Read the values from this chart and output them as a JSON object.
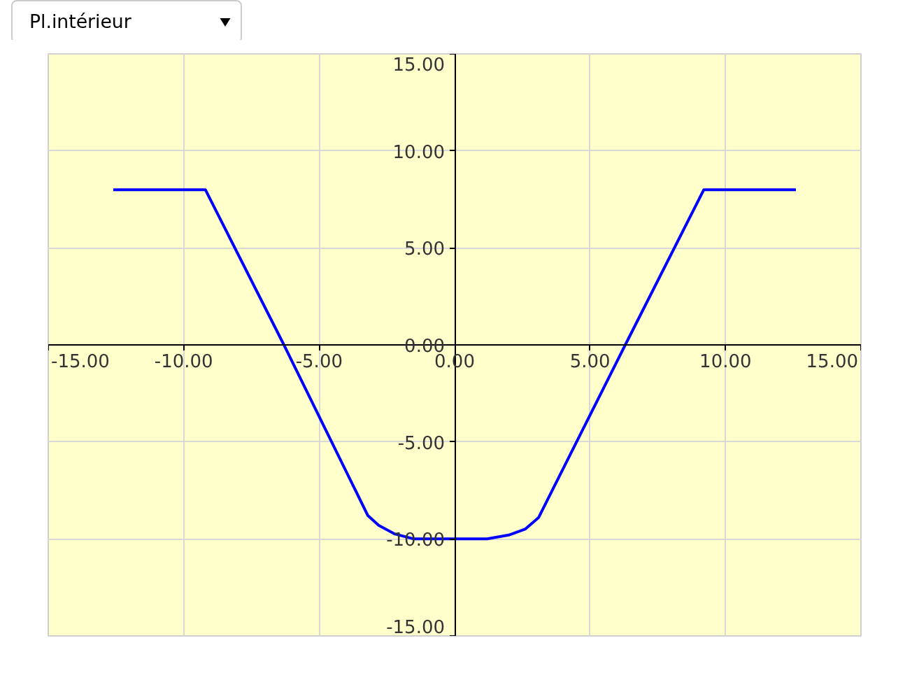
{
  "chart_data": {
    "type": "line",
    "annotations": [
      "Pl.intérieur"
    ],
    "x": [
      -12.6,
      -9.2,
      -6.3,
      -3.2,
      -2.8,
      -2.2,
      -1.5,
      1.2,
      2.0,
      2.6,
      3.1,
      6.3,
      9.2,
      12.6
    ],
    "series": [
      {
        "color": "#0000ff",
        "values": [
          8,
          8,
          0,
          -8.8,
          -9.3,
          -9.75,
          -10,
          -10,
          -9.8,
          -9.5,
          -8.9,
          0,
          8,
          8
        ]
      }
    ],
    "xlim": [
      -15,
      15
    ],
    "ylim": [
      -15,
      15
    ],
    "xticks": [
      {
        "value": -15,
        "label": "-15.00"
      },
      {
        "value": -10,
        "label": "-10.00"
      },
      {
        "value": -5,
        "label": "-5.00"
      },
      {
        "value": 0,
        "label": "0.00"
      },
      {
        "value": 5,
        "label": "5.00"
      },
      {
        "value": 10,
        "label": "10.00"
      },
      {
        "value": 15,
        "label": "15.00"
      }
    ],
    "yticks": [
      {
        "value": -15,
        "label": "-15.00"
      },
      {
        "value": -10,
        "label": "-10.00"
      },
      {
        "value": -5,
        "label": "-5.00"
      },
      {
        "value": 0,
        "label": "0.00"
      },
      {
        "value": 5,
        "label": "5.00"
      },
      {
        "value": 10,
        "label": "10.00"
      },
      {
        "value": 15,
        "label": "15.00"
      }
    ],
    "grid": true,
    "marker": "none",
    "line_style": "solid"
  }
}
